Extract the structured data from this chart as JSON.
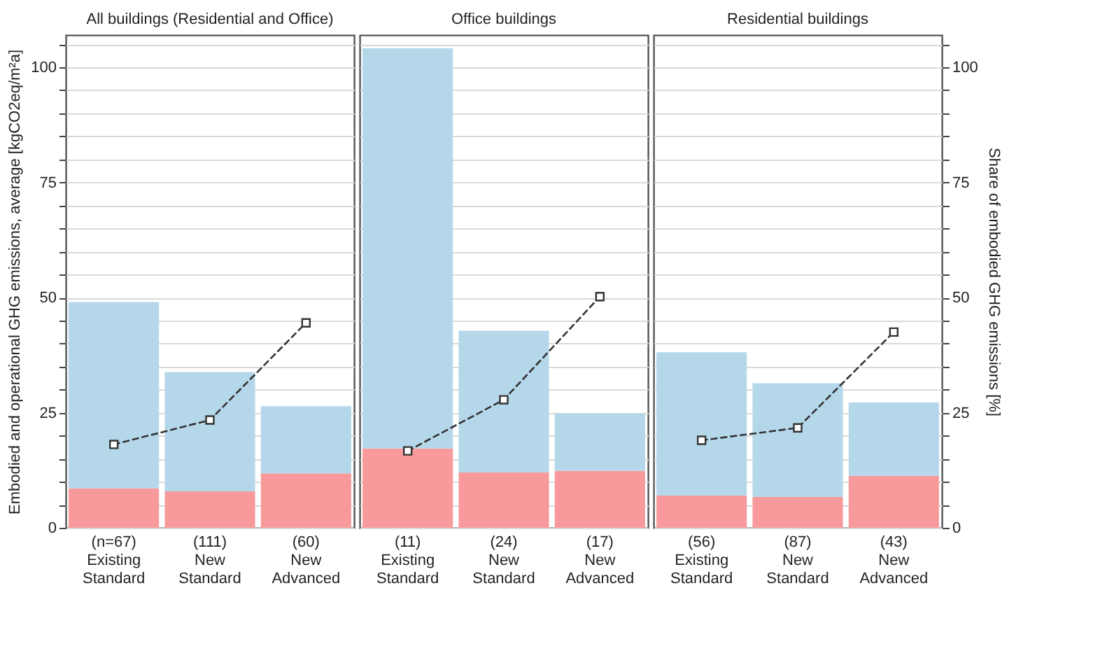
{
  "chart_data": [
    {
      "type": "bar",
      "title": "All buildings (Residential and Office)",
      "stacked": true,
      "grid": "y",
      "ylabel": "Embodied and operational GHG emissions, average [kgCO2eq/m²a]",
      "categories": [
        "(n=67)\nExisting\nStandard",
        "(111)\nNew\nStandard",
        "(60)\nNew\nAdvanced"
      ],
      "series": [
        {
          "color": "#f8999b",
          "values": [
            8.6,
            7.9,
            11.8
          ]
        },
        {
          "color": "#b5d7ea",
          "values": [
            40.4,
            25.9,
            14.6
          ]
        },
        {
          "type": "line",
          "color": "#333333",
          "marker": "square",
          "line_style": "dashed",
          "values": [
            18.1,
            23.4,
            44.5
          ]
        }
      ],
      "ylim": [
        0,
        107
      ],
      "yticks": [
        0,
        {
          "value": 5,
          "label": null
        },
        {
          "value": 10,
          "label": null
        },
        {
          "value": 15,
          "label": null
        },
        {
          "value": 20,
          "label": null
        },
        25,
        {
          "value": 30,
          "label": null
        },
        {
          "value": 35,
          "label": null
        },
        {
          "value": 40,
          "label": null
        },
        {
          "value": 45,
          "label": null
        },
        50,
        {
          "value": 55,
          "label": null
        },
        {
          "value": 60,
          "label": null
        },
        {
          "value": 65,
          "label": null
        },
        {
          "value": 70,
          "label": null
        },
        75,
        {
          "value": 80,
          "label": null
        },
        {
          "value": 85,
          "label": null
        },
        {
          "value": 90,
          "label": null
        },
        {
          "value": 95,
          "label": null
        },
        100,
        {
          "value": 105,
          "label": null
        }
      ]
    },
    {
      "type": "bar",
      "title": "Office buildings",
      "stacked": true,
      "grid": "y",
      "tick_labels": "x",
      "categories": [
        "(11)\nExisting\nStandard",
        "(24)\nNew\nStandard",
        "(17)\nNew\nAdvanced"
      ],
      "series": [
        {
          "color": "#f8999b",
          "values": [
            17.2,
            12.0,
            12.4
          ]
        },
        {
          "color": "#b5d7ea",
          "values": [
            86.9,
            30.8,
            12.4
          ]
        },
        {
          "type": "line",
          "color": "#333333",
          "marker": "square",
          "line_style": "dashed",
          "values": [
            16.7,
            27.8,
            50.2
          ]
        }
      ],
      "ylim": [
        0,
        107
      ],
      "yticks": [
        0,
        {
          "value": 5,
          "label": null
        },
        {
          "value": 10,
          "label": null
        },
        {
          "value": 15,
          "label": null
        },
        {
          "value": 20,
          "label": null
        },
        25,
        {
          "value": 30,
          "label": null
        },
        {
          "value": 35,
          "label": null
        },
        {
          "value": 40,
          "label": null
        },
        {
          "value": 45,
          "label": null
        },
        50,
        {
          "value": 55,
          "label": null
        },
        {
          "value": 60,
          "label": null
        },
        {
          "value": 65,
          "label": null
        },
        {
          "value": 70,
          "label": null
        },
        75,
        {
          "value": 80,
          "label": null
        },
        {
          "value": 85,
          "label": null
        },
        {
          "value": 90,
          "label": null
        },
        {
          "value": 95,
          "label": null
        },
        100,
        {
          "value": 105,
          "label": null
        }
      ]
    },
    {
      "type": "bar",
      "title": "Residential buildings",
      "stacked": true,
      "grid": "y",
      "y2label": "Share of embodied GHG emissions [%]",
      "categories": [
        "(56)\nExisting\nStandard",
        "(87)\nNew\nStandard",
        "(43)\nNew\nAdvanced"
      ],
      "series": [
        {
          "axis": "y2",
          "color": "#f8999b",
          "values": [
            7.0,
            6.7,
            11.3
          ]
        },
        {
          "axis": "y2",
          "color": "#b5d7ea",
          "values": [
            31.1,
            24.7,
            15.9
          ]
        },
        {
          "type": "line",
          "axis": "y2",
          "color": "#333333",
          "marker": "square",
          "line_style": "dashed",
          "values": [
            19.0,
            21.7,
            42.5
          ]
        }
      ],
      "y2lim": [
        0,
        107
      ],
      "y2ticks": [
        0,
        {
          "value": 5,
          "label": null
        },
        {
          "value": 10,
          "label": null
        },
        {
          "value": 15,
          "label": null
        },
        {
          "value": 20,
          "label": null
        },
        25,
        {
          "value": 30,
          "label": null
        },
        {
          "value": 35,
          "label": null
        },
        {
          "value": 40,
          "label": null
        },
        {
          "value": 45,
          "label": null
        },
        50,
        {
          "value": 55,
          "label": null
        },
        {
          "value": 60,
          "label": null
        },
        {
          "value": 65,
          "label": null
        },
        {
          "value": 70,
          "label": null
        },
        75,
        {
          "value": 80,
          "label": null
        },
        {
          "value": 85,
          "label": null
        },
        {
          "value": 90,
          "label": null
        },
        {
          "value": 95,
          "label": null
        },
        100,
        {
          "value": 105,
          "label": null
        }
      ]
    }
  ]
}
